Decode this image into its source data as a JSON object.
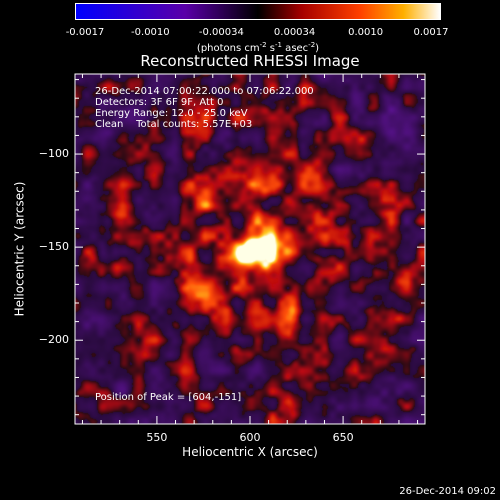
{
  "colorbar": {
    "tick_labels": [
      "-0.0017",
      "-0.0010",
      "-0.00034",
      "0.00034",
      "0.0010",
      "0.0017"
    ],
    "tick_values": [
      -0.0017,
      -0.001,
      -0.00034,
      0.00034,
      0.001,
      0.0017
    ],
    "unit_prefix": "(photons cm",
    "unit_exp1": "-2",
    "unit_mid1": " s",
    "unit_exp2": "-1",
    "unit_mid2": " asec",
    "unit_exp3": "-2",
    "unit_suffix": ")",
    "range": [
      -0.0017,
      0.0017
    ],
    "colors": [
      "#0000ff",
      "#5a00a8",
      "#000000",
      "#a60000",
      "#ff4000",
      "#ffb000",
      "#ffffff"
    ]
  },
  "chart_data": {
    "type": "heatmap",
    "title": "Reconstructed RHESSI Image",
    "xlabel": "Heliocentric X (arcsec)",
    "ylabel": "Heliocentric Y (arcsec)",
    "xlim": [
      506,
      694
    ],
    "ylim": [
      -245,
      -57
    ],
    "x_ticks": [
      550,
      600,
      650
    ],
    "y_ticks": [
      -100,
      -150,
      -200
    ],
    "x_tick_labels": [
      "550",
      "600",
      "650"
    ],
    "y_tick_labels": [
      "−100",
      "−150",
      "−200"
    ],
    "peak": [
      604,
      -151
    ],
    "annotations": {
      "time_range": "26-Dec-2014 07:00:22.000 to 07:06:22.000",
      "detectors": "Detectors: 3F 6F 9F, Att 0",
      "energy": "Energy Range: 12.0 - 25.0 keV",
      "clean": "Clean    Total counts: 5.57E+03",
      "peak_position": "Position of Peak = [604,-151]"
    }
  },
  "footer": {
    "timestamp": "26-Dec-2014 09:02"
  }
}
